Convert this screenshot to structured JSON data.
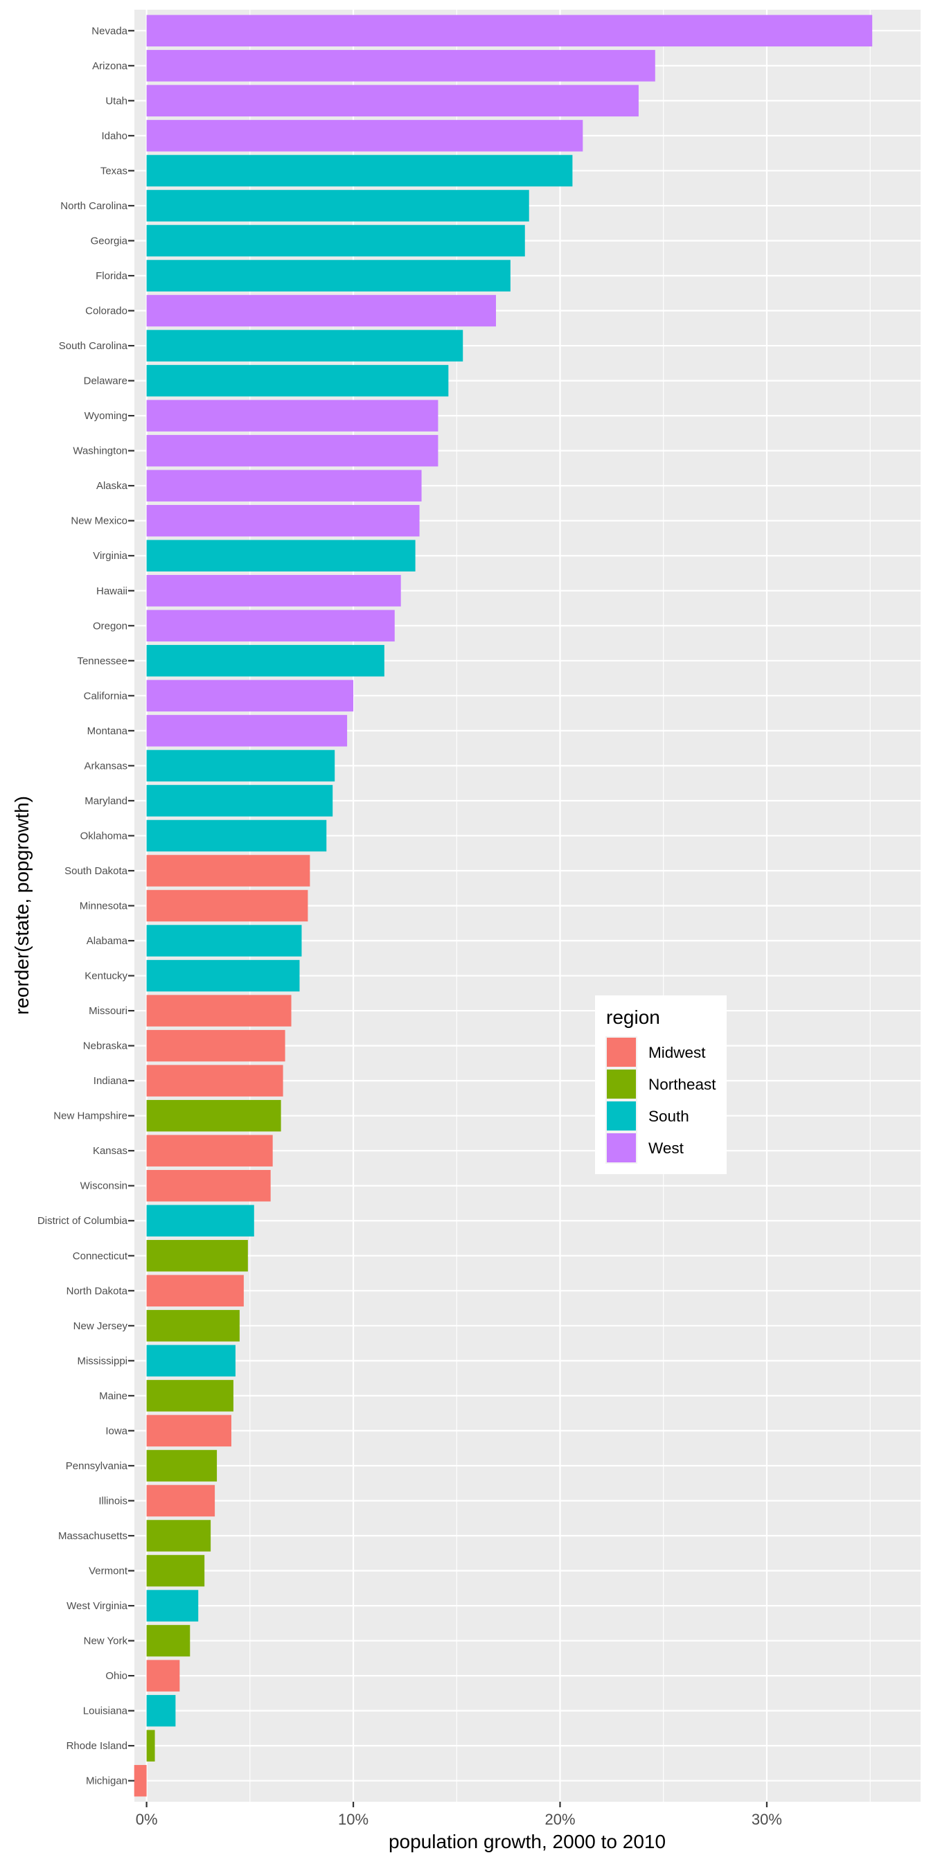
{
  "chart_data": {
    "type": "bar",
    "orientation": "horizontal",
    "title": "",
    "xlabel": "population growth, 2000 to 2010",
    "ylabel": "reorder(state, popgrowth)",
    "x_tick_labels": [
      "0%",
      "10%",
      "20%",
      "30%"
    ],
    "x_ticks": [
      0,
      10,
      20,
      30
    ],
    "x_minor_ticks": [
      5,
      15,
      25,
      35
    ],
    "xlim": [
      -0.59,
      37.44
    ],
    "value_units": "percent",
    "grid": true,
    "legend": {
      "title": "region",
      "placement": "right-center-inside",
      "entries": [
        {
          "name": "Midwest",
          "color": "#F8766D"
        },
        {
          "name": "Northeast",
          "color": "#7CAE00"
        },
        {
          "name": "South",
          "color": "#00BFC4"
        },
        {
          "name": "West",
          "color": "#C77CFF"
        }
      ]
    },
    "categories": [
      "Nevada",
      "Arizona",
      "Utah",
      "Idaho",
      "Texas",
      "North Carolina",
      "Georgia",
      "Florida",
      "Colorado",
      "South Carolina",
      "Delaware",
      "Wyoming",
      "Washington",
      "Alaska",
      "New Mexico",
      "Virginia",
      "Hawaii",
      "Oregon",
      "Tennessee",
      "California",
      "Montana",
      "Arkansas",
      "Maryland",
      "Oklahoma",
      "South Dakota",
      "Minnesota",
      "Alabama",
      "Kentucky",
      "Missouri",
      "Nebraska",
      "Indiana",
      "New Hampshire",
      "Kansas",
      "Wisconsin",
      "District of Columbia",
      "Connecticut",
      "North Dakota",
      "New Jersey",
      "Mississippi",
      "Maine",
      "Iowa",
      "Pennsylvania",
      "Illinois",
      "Massachusetts",
      "Vermont",
      "West Virginia",
      "New York",
      "Ohio",
      "Louisiana",
      "Rhode Island",
      "Michigan"
    ],
    "values": [
      35.1,
      24.6,
      23.8,
      21.1,
      20.6,
      18.5,
      18.3,
      17.6,
      16.9,
      15.3,
      14.6,
      14.1,
      14.1,
      13.3,
      13.2,
      13.0,
      12.3,
      12.0,
      11.5,
      10.0,
      9.7,
      9.1,
      9.0,
      8.7,
      7.9,
      7.8,
      7.5,
      7.4,
      7.0,
      6.7,
      6.6,
      6.5,
      6.1,
      6.0,
      5.2,
      4.9,
      4.7,
      4.5,
      4.3,
      4.2,
      4.1,
      3.4,
      3.3,
      3.1,
      2.8,
      2.5,
      2.1,
      1.6,
      1.4,
      0.4,
      -0.6
    ],
    "regions": [
      "West",
      "West",
      "West",
      "West",
      "South",
      "South",
      "South",
      "South",
      "West",
      "South",
      "South",
      "West",
      "West",
      "West",
      "West",
      "South",
      "West",
      "West",
      "South",
      "West",
      "West",
      "South",
      "South",
      "South",
      "Midwest",
      "Midwest",
      "South",
      "South",
      "Midwest",
      "Midwest",
      "Midwest",
      "Northeast",
      "Midwest",
      "Midwest",
      "South",
      "Northeast",
      "Midwest",
      "Northeast",
      "South",
      "Northeast",
      "Midwest",
      "Northeast",
      "Midwest",
      "Northeast",
      "Northeast",
      "South",
      "Northeast",
      "Midwest",
      "South",
      "Northeast",
      "Midwest"
    ]
  },
  "theme": {
    "panel_background": "#EBEBEB",
    "grid_color": "#FFFFFF",
    "tick_color": "#333333",
    "tick_label_color": "#4D4D4D",
    "title_color": "#000000"
  }
}
